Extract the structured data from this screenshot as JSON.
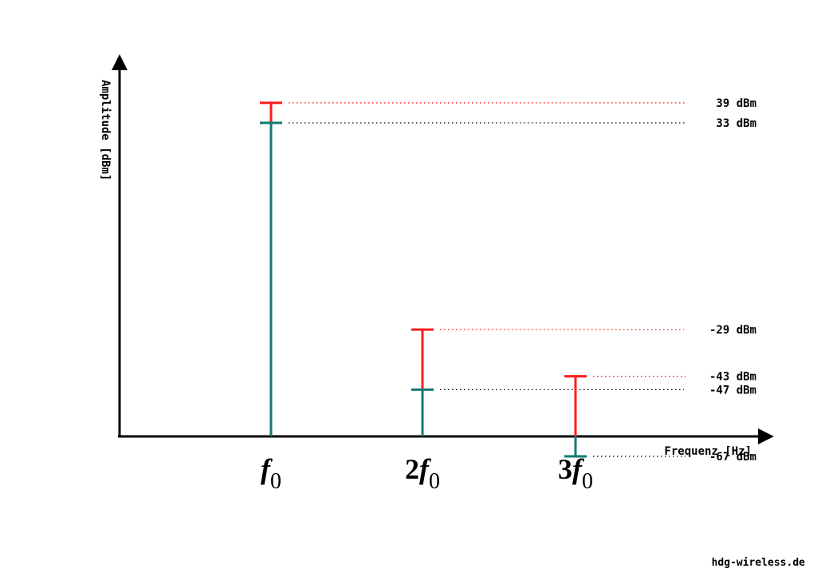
{
  "chart_data": {
    "type": "bar",
    "ylabel": "Amplitude [dBm]",
    "xlabel": "Frequenz [Hz]",
    "categories": [
      {
        "prefix": "",
        "symbol": "f",
        "subscript": "0"
      },
      {
        "prefix": "2",
        "symbol": "f",
        "subscript": "0"
      },
      {
        "prefix": "3",
        "symbol": "f",
        "subscript": "0"
      }
    ],
    "series": [
      {
        "values": [
          33,
          -47,
          -67
        ],
        "color": "#127a72"
      },
      {
        "values": [
          39,
          -29,
          -43
        ],
        "color": "#ff1a1a"
      }
    ],
    "value_labels": {
      "teal": [
        "33 dBm",
        "-47 dBm",
        "-67 dBm"
      ],
      "red": [
        "39 dBm",
        "-29 dBm",
        "-43 dBm"
      ]
    },
    "grid": false,
    "line_colors": {
      "teal_dots": "#000000",
      "red_dots": "#ff1a1a",
      "axis": "#000000"
    }
  },
  "footer": {
    "credit": "hdg-wireless.de"
  }
}
